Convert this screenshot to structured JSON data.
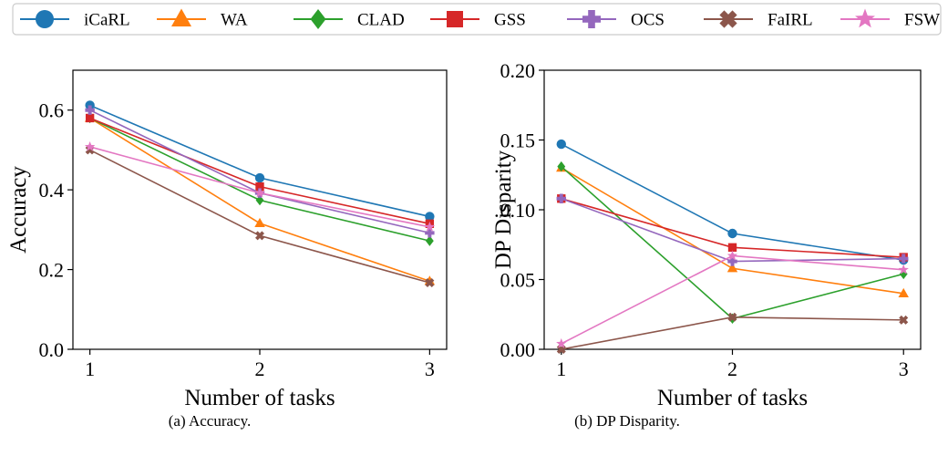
{
  "figure": {
    "captions": [
      "(a) Accuracy.",
      "(b) DP Disparity."
    ]
  },
  "legend": {
    "placement": "top",
    "entries": [
      {
        "name": "iCaRL",
        "color": "#1f77b4",
        "marker": "circle"
      },
      {
        "name": "WA",
        "color": "#ff7f0e",
        "marker": "triangle"
      },
      {
        "name": "CLAD",
        "color": "#2ca02c",
        "marker": "diamond"
      },
      {
        "name": "GSS",
        "color": "#d62728",
        "marker": "square"
      },
      {
        "name": "OCS",
        "color": "#9467bd",
        "marker": "plus"
      },
      {
        "name": "FaIRL",
        "color": "#8c564b",
        "marker": "x"
      },
      {
        "name": "FSW",
        "color": "#e377c2",
        "marker": "star"
      }
    ]
  },
  "chart_data": [
    {
      "type": "line",
      "xlabel": "Number of tasks",
      "ylabel": "Accuracy",
      "x": [
        1,
        2,
        3
      ],
      "xticks": [
        "1",
        "2",
        "3"
      ],
      "ylim": [
        0.0,
        0.7
      ],
      "yticks": [
        0.0,
        0.2,
        0.4,
        0.6
      ],
      "ytick_labels": [
        "0.0",
        "0.2",
        "0.4",
        "0.6"
      ],
      "grid": false,
      "series": [
        {
          "name": "iCaRL",
          "values": [
            0.612,
            0.43,
            0.333
          ]
        },
        {
          "name": "WA",
          "values": [
            0.58,
            0.316,
            0.171
          ]
        },
        {
          "name": "CLAD",
          "values": [
            0.58,
            0.374,
            0.272
          ]
        },
        {
          "name": "GSS",
          "values": [
            0.58,
            0.408,
            0.315
          ]
        },
        {
          "name": "OCS",
          "values": [
            0.6,
            0.392,
            0.292
          ]
        },
        {
          "name": "FaIRL",
          "values": [
            0.5,
            0.285,
            0.167
          ]
        },
        {
          "name": "FSW",
          "values": [
            0.508,
            0.392,
            0.307
          ]
        }
      ]
    },
    {
      "type": "line",
      "xlabel": "Number of tasks",
      "ylabel": "DP Disparity",
      "x": [
        1,
        2,
        3
      ],
      "xticks": [
        "1",
        "2",
        "3"
      ],
      "ylim": [
        0.0,
        0.2
      ],
      "yticks": [
        0.0,
        0.05,
        0.1,
        0.15,
        0.2
      ],
      "ytick_labels": [
        "0.00",
        "0.05",
        "0.10",
        "0.15",
        "0.20"
      ],
      "grid": false,
      "series": [
        {
          "name": "iCaRL",
          "values": [
            0.147,
            0.083,
            0.064
          ]
        },
        {
          "name": "WA",
          "values": [
            0.13,
            0.058,
            0.04
          ]
        },
        {
          "name": "CLAD",
          "values": [
            0.131,
            0.022,
            0.054
          ]
        },
        {
          "name": "GSS",
          "values": [
            0.108,
            0.073,
            0.066
          ]
        },
        {
          "name": "OCS",
          "values": [
            0.108,
            0.063,
            0.065
          ]
        },
        {
          "name": "FaIRL",
          "values": [
            0.0,
            0.023,
            0.021
          ]
        },
        {
          "name": "FSW",
          "values": [
            0.004,
            0.067,
            0.057
          ]
        }
      ]
    }
  ]
}
